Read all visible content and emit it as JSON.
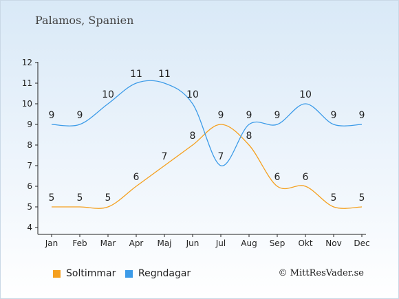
{
  "title": "Palamos, Spanien",
  "credit": "© MittResVader.se",
  "chart_data": {
    "type": "line",
    "categories": [
      "Jan",
      "Feb",
      "Mar",
      "Apr",
      "Maj",
      "Jun",
      "Jul",
      "Aug",
      "Sep",
      "Okt",
      "Nov",
      "Dec"
    ],
    "ylim": [
      4,
      12
    ],
    "yticks": [
      4,
      5,
      6,
      7,
      8,
      9,
      10,
      11,
      12
    ],
    "grid": false,
    "legend_placement": "bottom-left",
    "series": [
      {
        "name": "Soltimmar",
        "color": "#f5a01e",
        "values": [
          5,
          5,
          5,
          6,
          7,
          8,
          9,
          8,
          6,
          6,
          5,
          5
        ]
      },
      {
        "name": "Regndagar",
        "color": "#3c9be8",
        "values": [
          9,
          9,
          10,
          11,
          11,
          10,
          7,
          9,
          9,
          10,
          9,
          9
        ]
      }
    ]
  }
}
